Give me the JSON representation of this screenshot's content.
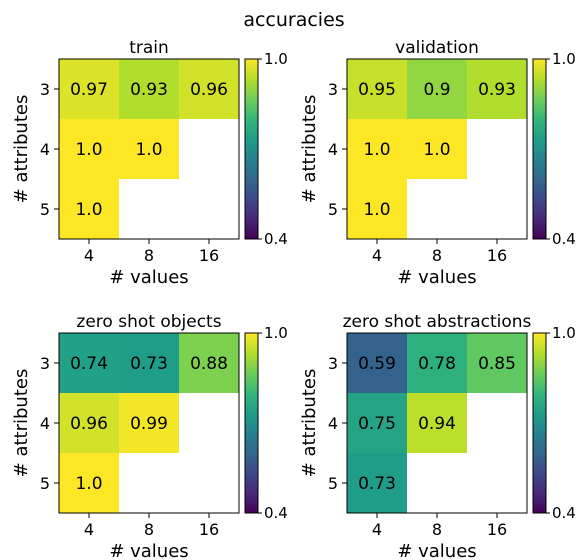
{
  "figure": {
    "suptitle": "accuracies"
  },
  "colormap": {
    "name": "viridis",
    "stops": [
      "#440154",
      "#482878",
      "#3e4989",
      "#31688e",
      "#26828e",
      "#1f9e89",
      "#35b779",
      "#6ece58",
      "#b5de2b",
      "#fde725"
    ]
  },
  "chart_data": [
    {
      "type": "heatmap",
      "title": "train",
      "xlabel": "# values",
      "ylabel": "# attributes",
      "x_categories": [
        "4",
        "8",
        "16"
      ],
      "y_categories": [
        "3",
        "4",
        "5"
      ],
      "cells": [
        [
          "0.97",
          "0.93",
          "0.96"
        ],
        [
          "1.0",
          "1.0",
          ""
        ],
        [
          "1.0",
          "",
          ""
        ]
      ],
      "colorbar": {
        "min": 0.4,
        "max": 1.0,
        "tick_labels": [
          "1.0",
          "0.4"
        ]
      }
    },
    {
      "type": "heatmap",
      "title": "validation",
      "xlabel": "# values",
      "ylabel": "# attributes",
      "x_categories": [
        "4",
        "8",
        "16"
      ],
      "y_categories": [
        "3",
        "4",
        "5"
      ],
      "cells": [
        [
          "0.95",
          "0.9",
          "0.93"
        ],
        [
          "1.0",
          "1.0",
          ""
        ],
        [
          "1.0",
          "",
          ""
        ]
      ],
      "colorbar": {
        "min": 0.4,
        "max": 1.0,
        "tick_labels": [
          "1.0",
          "0.4"
        ]
      }
    },
    {
      "type": "heatmap",
      "title": "zero shot objects",
      "xlabel": "# values",
      "ylabel": "# attributes",
      "x_categories": [
        "4",
        "8",
        "16"
      ],
      "y_categories": [
        "3",
        "4",
        "5"
      ],
      "cells": [
        [
          "0.74",
          "0.73",
          "0.88"
        ],
        [
          "0.96",
          "0.99",
          ""
        ],
        [
          "1.0",
          "",
          ""
        ]
      ],
      "colorbar": {
        "min": 0.4,
        "max": 1.0,
        "tick_labels": [
          "1.0",
          "0.4"
        ]
      }
    },
    {
      "type": "heatmap",
      "title": "zero shot abstractions",
      "xlabel": "# values",
      "ylabel": "# attributes",
      "x_categories": [
        "4",
        "8",
        "16"
      ],
      "y_categories": [
        "3",
        "4",
        "5"
      ],
      "cells": [
        [
          "0.59",
          "0.78",
          "0.85"
        ],
        [
          "0.75",
          "0.94",
          ""
        ],
        [
          "0.73",
          "",
          ""
        ]
      ],
      "colorbar": {
        "min": 0.4,
        "max": 1.0,
        "tick_labels": [
          "1.0",
          "0.4"
        ]
      }
    }
  ]
}
